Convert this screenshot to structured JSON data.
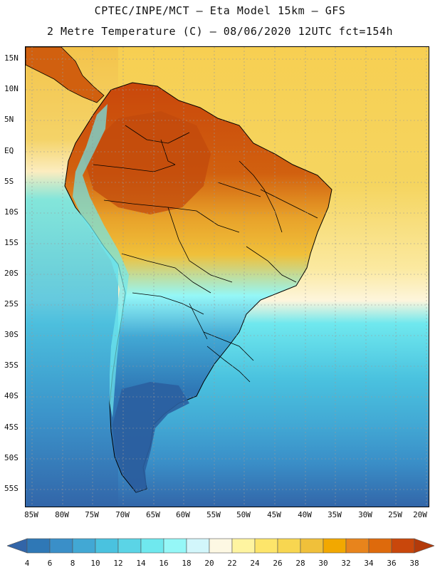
{
  "header": {
    "title_line1": "CPTEC/INPE/MCT –  Eta Model 15km – GFS",
    "title_line2": "2 Metre Temperature (C) – 08/06/2020 12UTC fct=154h"
  },
  "map": {
    "lat_labels": [
      "15N",
      "10N",
      "5N",
      "EQ",
      "5S",
      "10S",
      "15S",
      "20S",
      "25S",
      "30S",
      "35S",
      "40S",
      "45S",
      "50S",
      "55S"
    ],
    "lon_labels": [
      "85W",
      "80W",
      "75W",
      "70W",
      "65W",
      "60W",
      "55W",
      "50W",
      "45W",
      "40W",
      "35W",
      "30W",
      "25W",
      "20W"
    ],
    "region": "South America"
  },
  "colorbar": {
    "levels": [
      "4",
      "6",
      "8",
      "10",
      "12",
      "14",
      "16",
      "18",
      "20",
      "22",
      "24",
      "26",
      "28",
      "30",
      "32",
      "34",
      "36",
      "38"
    ],
    "colors": [
      "#3265a8",
      "#2f78b6",
      "#3a8fc8",
      "#42a8d4",
      "#4ac2df",
      "#5bd4e6",
      "#6fe8ee",
      "#95f7f7",
      "#d2f6fb",
      "#fdf8e3",
      "#fef4a0",
      "#fde56a",
      "#f8d650",
      "#f0c03a",
      "#f2a800",
      "#e8841c",
      "#de6a0c",
      "#c9470b",
      "#b33a0a"
    ]
  }
}
